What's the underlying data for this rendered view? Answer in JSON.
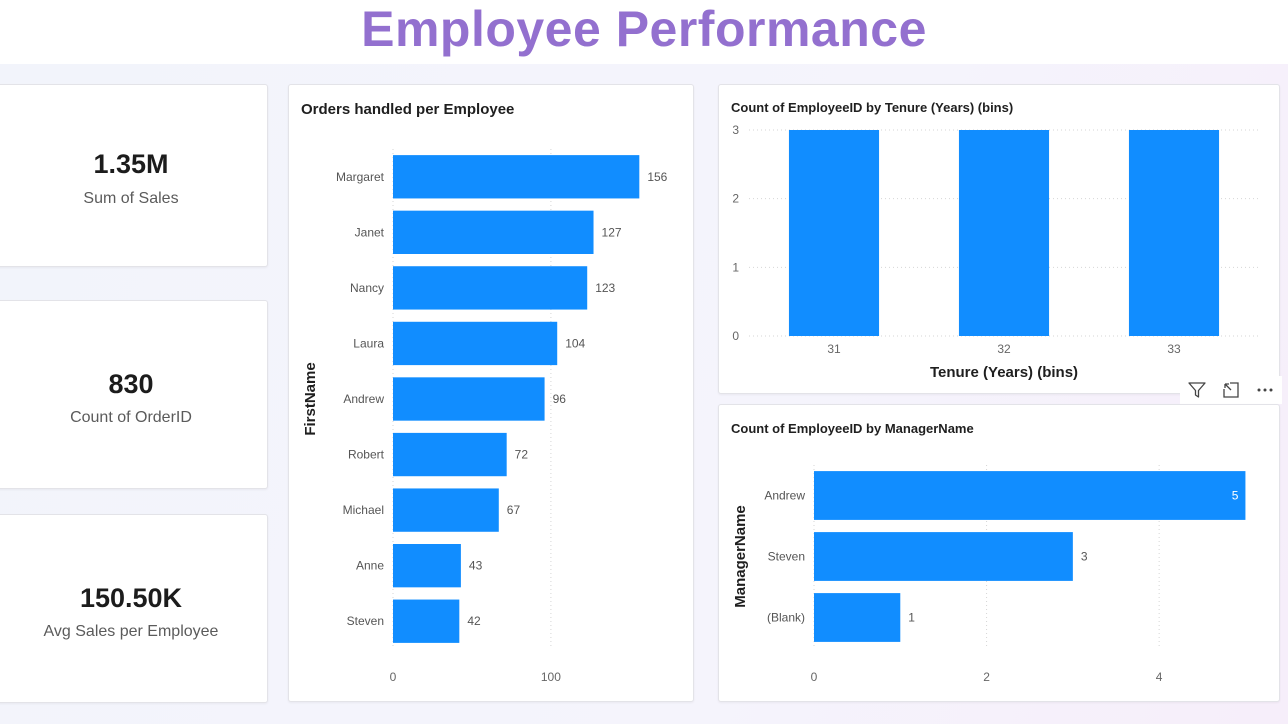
{
  "page": {
    "title": "Employee Performance"
  },
  "kpis": [
    {
      "value": "1.35M",
      "label": "Sum of Sales"
    },
    {
      "value": "830",
      "label": "Count of OrderID"
    },
    {
      "value": "150.50K",
      "label": "Avg Sales per Employee"
    }
  ],
  "colors": {
    "bar": "#118dff",
    "title": "#9370cf"
  },
  "chart_data": [
    {
      "id": "orders",
      "type": "bar",
      "orientation": "horizontal",
      "title": "Orders handled per Employee",
      "ylabel": "FirstName",
      "xlabel": "",
      "categories": [
        "Margaret",
        "Janet",
        "Nancy",
        "Laura",
        "Andrew",
        "Robert",
        "Michael",
        "Anne",
        "Steven"
      ],
      "values": [
        156,
        127,
        123,
        104,
        96,
        72,
        67,
        43,
        42
      ],
      "xlim": [
        0,
        190
      ],
      "xticks": [
        0,
        100
      ],
      "data_labels": true,
      "grid": true
    },
    {
      "id": "tenure",
      "type": "bar",
      "orientation": "vertical",
      "title": "Count of EmployeeID by Tenure (Years) (bins)",
      "xlabel": "Tenure (Years) (bins)",
      "ylabel": "",
      "categories": [
        "31",
        "32",
        "33"
      ],
      "values": [
        3,
        3,
        3
      ],
      "ylim": [
        0,
        3
      ],
      "yticks": [
        0,
        1,
        2,
        3
      ],
      "data_labels": false,
      "grid": true
    },
    {
      "id": "manager",
      "type": "bar",
      "orientation": "horizontal",
      "title": "Count of EmployeeID by ManagerName",
      "ylabel": "ManagerName",
      "xlabel": "",
      "categories": [
        "Andrew",
        "Steven",
        "(Blank)"
      ],
      "values": [
        5,
        3,
        1
      ],
      "xlim": [
        0,
        5.25
      ],
      "xticks": [
        0,
        2,
        4
      ],
      "data_labels": true,
      "grid": true
    }
  ]
}
